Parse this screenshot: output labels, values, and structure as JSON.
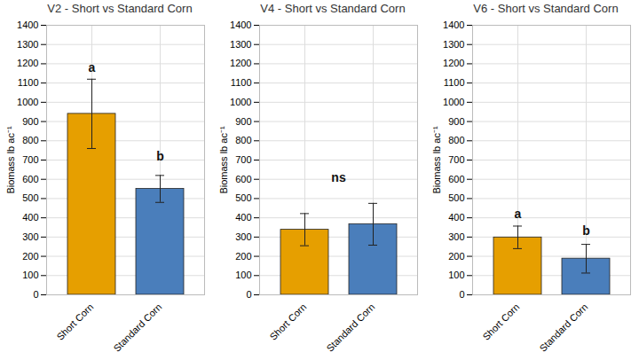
{
  "chart_data": [
    {
      "type": "bar",
      "title": "V2 - Short vs Standard Corn",
      "y_label": "Biomass lb ac⁻¹",
      "categories": [
        "Short Corn",
        "Standard Corn"
      ],
      "values": [
        940,
        550
      ],
      "error_bars": [
        [
          760,
          1120
        ],
        [
          480,
          620
        ]
      ],
      "colors": [
        "#E69F00",
        "#4A7EBB"
      ],
      "annotations": [
        {
          "text": "a",
          "category": "Short Corn",
          "y": 1180
        },
        {
          "text": "b",
          "category": "Standard Corn",
          "y": 720
        }
      ],
      "ylim": [
        0,
        1400
      ],
      "yticks": [
        0,
        100,
        200,
        300,
        400,
        500,
        600,
        700,
        800,
        900,
        1000,
        1100,
        1200,
        1300,
        1400
      ],
      "grid": true
    },
    {
      "type": "bar",
      "title": "V4 - Short vs Standard Corn",
      "y_label": "Biomass lb ac⁻¹",
      "categories": [
        "Short Corn",
        "Standard Corn"
      ],
      "values": [
        338,
        367
      ],
      "error_bars": [
        [
          255,
          422
        ],
        [
          258,
          475
        ]
      ],
      "colors": [
        "#E69F00",
        "#4A7EBB"
      ],
      "annotations": [
        {
          "text": "ns",
          "y": 610
        }
      ],
      "ylim": [
        0,
        1400
      ],
      "yticks": [
        0,
        100,
        200,
        300,
        400,
        500,
        600,
        700,
        800,
        900,
        1000,
        1100,
        1200,
        1300,
        1400
      ],
      "grid": true
    },
    {
      "type": "bar",
      "title": "V6 - Short vs Standard Corn",
      "y_label": "Biomass lb ac⁻¹",
      "categories": [
        "Short Corn",
        "Standard Corn"
      ],
      "values": [
        298,
        188
      ],
      "error_bars": [
        [
          240,
          357
        ],
        [
          113,
          262
        ]
      ],
      "colors": [
        "#E69F00",
        "#4A7EBB"
      ],
      "annotations": [
        {
          "text": "a",
          "category": "Short Corn",
          "y": 420
        },
        {
          "text": "b",
          "category": "Standard Corn",
          "y": 330
        }
      ],
      "ylim": [
        0,
        1400
      ],
      "yticks": [
        0,
        100,
        200,
        300,
        400,
        500,
        600,
        700,
        800,
        900,
        1000,
        1100,
        1200,
        1300,
        1400
      ],
      "grid": true
    }
  ]
}
